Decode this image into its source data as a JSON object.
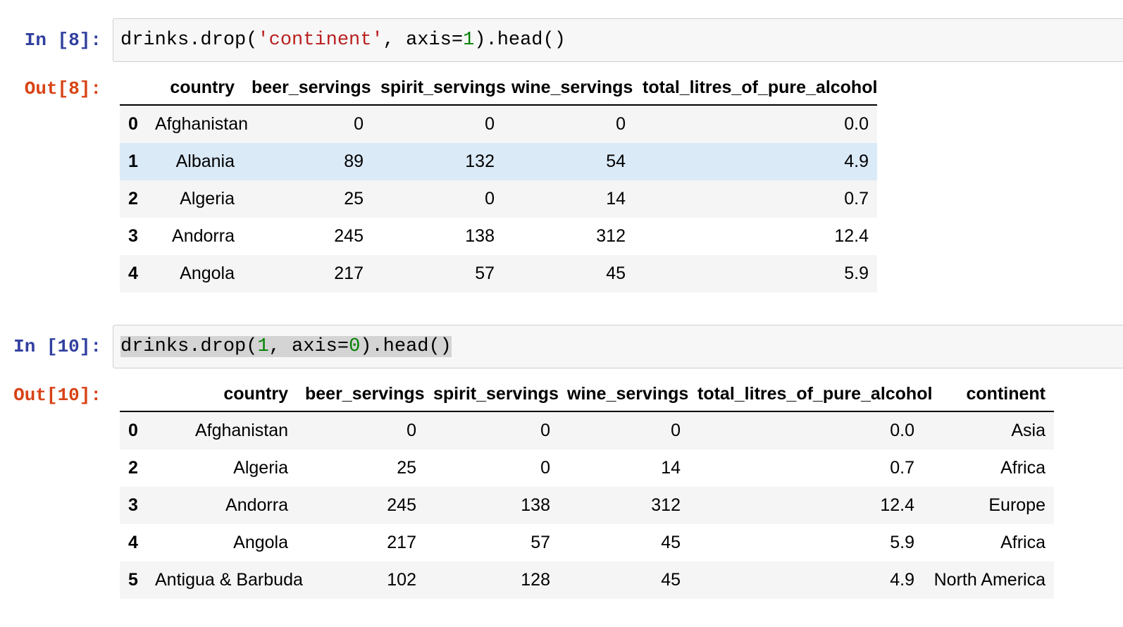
{
  "colors": {
    "input_prompt": "#303F9F",
    "output_prompt": "#D84315",
    "code_string": "#BA2121",
    "code_number": "#008000",
    "cell_bg": "#F7F7F7",
    "cell_border": "#CFCFCF",
    "selection": "#D4D4D4",
    "stripe": "#F5F5F5",
    "row_highlight": "#DBEAF7",
    "header_border": "#000000"
  },
  "cells": [
    {
      "input_prompt": "In [8]:",
      "output_prompt": "Out[8]:",
      "code_text": "drinks.drop('continent', axis=1).head()",
      "code_selected": false,
      "code_tokens": [
        {
          "text": "drinks.drop(",
          "type": "plain"
        },
        {
          "text": "'continent'",
          "type": "string"
        },
        {
          "text": ", axis=",
          "type": "plain"
        },
        {
          "text": "1",
          "type": "number"
        },
        {
          "text": ").head()",
          "type": "plain"
        }
      ],
      "table": {
        "index_header": "",
        "columns": [
          "country",
          "beer_servings",
          "spirit_servings",
          "wine_servings",
          "total_litres_of_pure_alcohol"
        ],
        "rows": [
          {
            "index": "0",
            "cells": [
              "Afghanistan",
              "0",
              "0",
              "0",
              "0.0"
            ],
            "highlight": false
          },
          {
            "index": "1",
            "cells": [
              "Albania",
              "89",
              "132",
              "54",
              "4.9"
            ],
            "highlight": true
          },
          {
            "index": "2",
            "cells": [
              "Algeria",
              "25",
              "0",
              "14",
              "0.7"
            ],
            "highlight": false
          },
          {
            "index": "3",
            "cells": [
              "Andorra",
              "245",
              "138",
              "312",
              "12.4"
            ],
            "highlight": false
          },
          {
            "index": "4",
            "cells": [
              "Angola",
              "217",
              "57",
              "45",
              "5.9"
            ],
            "highlight": false
          }
        ]
      }
    },
    {
      "input_prompt": "In [10]:",
      "output_prompt": "Out[10]:",
      "code_text": "drinks.drop(1, axis=0).head()",
      "code_selected": true,
      "code_tokens": [
        {
          "text": "drinks.drop(",
          "type": "plain"
        },
        {
          "text": "1",
          "type": "number"
        },
        {
          "text": ", axis=",
          "type": "plain"
        },
        {
          "text": "0",
          "type": "number"
        },
        {
          "text": ").head()",
          "type": "plain"
        }
      ],
      "table": {
        "index_header": "",
        "columns": [
          "country",
          "beer_servings",
          "spirit_servings",
          "wine_servings",
          "total_litres_of_pure_alcohol",
          "continent"
        ],
        "rows": [
          {
            "index": "0",
            "cells": [
              "Afghanistan",
              "0",
              "0",
              "0",
              "0.0",
              "Asia"
            ],
            "highlight": false
          },
          {
            "index": "2",
            "cells": [
              "Algeria",
              "25",
              "0",
              "14",
              "0.7",
              "Africa"
            ],
            "highlight": false
          },
          {
            "index": "3",
            "cells": [
              "Andorra",
              "245",
              "138",
              "312",
              "12.4",
              "Europe"
            ],
            "highlight": false
          },
          {
            "index": "4",
            "cells": [
              "Angola",
              "217",
              "57",
              "45",
              "5.9",
              "Africa"
            ],
            "highlight": false
          },
          {
            "index": "5",
            "cells": [
              "Antigua & Barbuda",
              "102",
              "128",
              "45",
              "4.9",
              "North America"
            ],
            "highlight": false
          }
        ]
      }
    }
  ]
}
